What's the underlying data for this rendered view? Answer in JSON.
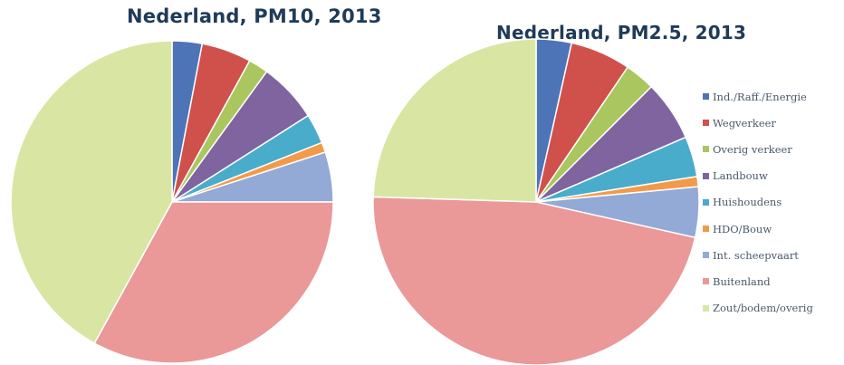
{
  "colors": {
    "Ind./Raff./Energie": "#4e74b8",
    "Wegverkeer": "#d0504c",
    "Overig verkeer": "#a9c75e",
    "Landbouw": "#8064a0",
    "Huishoudens": "#4aaccb",
    "HDO/Bouw": "#f39a4a",
    "Int. scheepvaart": "#93a9d6",
    "Buitenland": "#eb9898",
    "Zout/bodem/overig": "#d9e6a3"
  },
  "legend": [
    "Ind./Raff./Energie",
    "Wegverkeer",
    "Overig verkeer",
    "Landbouw",
    "Huishoudens",
    "HDO/Bouw",
    "Int. scheepvaart",
    "Buitenland",
    "Zout/bodem/overig"
  ],
  "chart_data": [
    {
      "type": "pie",
      "title": "Nederland, PM10, 2013",
      "categories": [
        "Ind./Raff./Energie",
        "Wegverkeer",
        "Overig verkeer",
        "Landbouw",
        "Huishoudens",
        "HDO/Bouw",
        "Int. scheepvaart",
        "Buitenland",
        "Zout/bodem/overig"
      ],
      "values": [
        3,
        5,
        2,
        6,
        3,
        1,
        5,
        33,
        42
      ],
      "legend_position": "right"
    },
    {
      "type": "pie",
      "title": "Nederland, PM2.5, 2013",
      "categories": [
        "Ind./Raff./Energie",
        "Wegverkeer",
        "Overig verkeer",
        "Landbouw",
        "Huishoudens",
        "HDO/Bouw",
        "Int. scheepvaart",
        "Buitenland",
        "Zout/bodem/overig"
      ],
      "values": [
        3.5,
        6,
        3,
        6,
        4,
        1,
        5,
        47,
        24.5
      ],
      "legend_position": "right"
    }
  ]
}
